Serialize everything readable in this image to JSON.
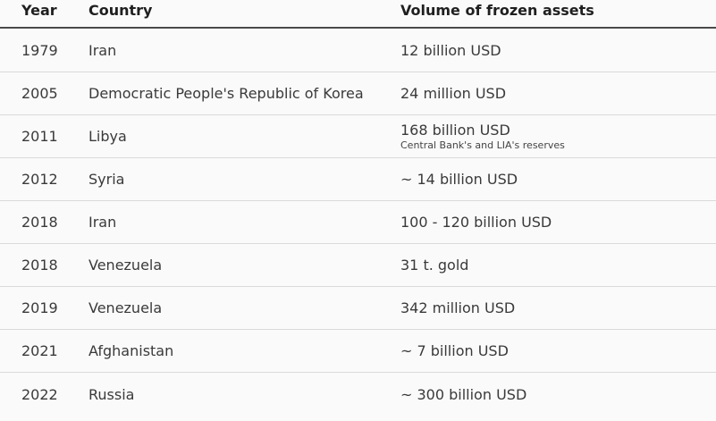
{
  "table": {
    "headers": {
      "year": "Year",
      "country": "Country",
      "volume": "Volume of frozen assets"
    },
    "rows": [
      {
        "year": "1979",
        "country": "Iran",
        "volume": "12 billion USD",
        "note": ""
      },
      {
        "year": "2005",
        "country": "Democratic People's Republic of Korea",
        "volume": "24 million USD",
        "note": ""
      },
      {
        "year": "2011",
        "country": "Libya",
        "volume": "168 billion USD",
        "note": "Central Bank's and LIA's reserves"
      },
      {
        "year": "2012",
        "country": "Syria",
        "volume": "~ 14 billion USD",
        "note": ""
      },
      {
        "year": "2018",
        "country": "Iran",
        "volume": "100 - 120 billion USD",
        "note": ""
      },
      {
        "year": "2018",
        "country": "Venezuela",
        "volume": "31 t. gold",
        "note": ""
      },
      {
        "year": "2019",
        "country": "Venezuela",
        "volume": "342 million USD",
        "note": ""
      },
      {
        "year": "2021",
        "country": "Afghanistan",
        "volume": "~ 7 billion USD",
        "note": ""
      },
      {
        "year": "2022",
        "country": "Russia",
        "volume": "~ 300 billion USD",
        "note": ""
      }
    ]
  }
}
